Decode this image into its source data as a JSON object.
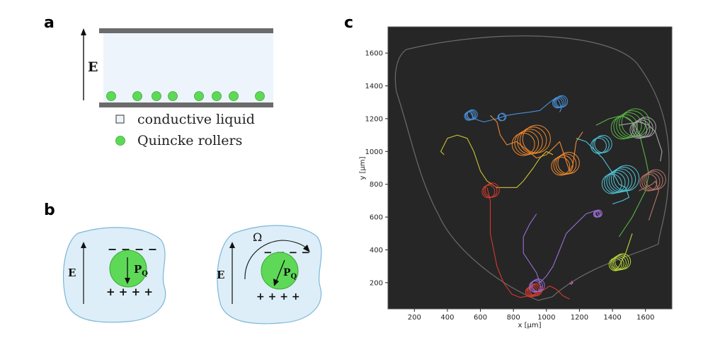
{
  "panels": {
    "a": {
      "letter": "a",
      "field_label": "E",
      "legend": [
        {
          "label": "conductive liquid",
          "marker": "square-outline"
        },
        {
          "label": "Quincke rollers",
          "marker": "green-circle"
        }
      ],
      "colors": {
        "plate": "#6b6b6b",
        "liquid": "#eef4fb",
        "roller": "#5ed957"
      }
    },
    "b": {
      "letter": "b",
      "left": {
        "field_label": "E",
        "dipole_label": "P",
        "dipole_subscript": "Q",
        "top_charges": "− − − −",
        "bottom_charges": "+ + + +"
      },
      "right": {
        "field_label": "E",
        "rotation_label": "Ω",
        "dipole_label": "P",
        "dipole_subscript": "Q",
        "top_charges": "− − − −",
        "bottom_charges": "+ + + +"
      },
      "colors": {
        "blob": "#ddeef8",
        "blob_edge": "#7bb6d9",
        "sphere": "#5ed957"
      }
    },
    "c": {
      "letter": "c",
      "colors": {
        "background": "#262626",
        "frame": "#555555"
      }
    }
  },
  "chart_data": {
    "type": "scatter",
    "title": "",
    "xlabel": "x [μm]",
    "ylabel": "y [μm]",
    "xlim": [
      40,
      1760
    ],
    "ylim": [
      40,
      1760
    ],
    "x_ticks": [
      200,
      400,
      600,
      800,
      1000,
      1200,
      1400,
      1600
    ],
    "y_ticks": [
      200,
      400,
      600,
      800,
      1000,
      1200,
      1400,
      1600
    ],
    "series": [
      {
        "color": "#4a90d9",
        "points": [
          [
            540,
            1240
          ],
          [
            560,
            1200
          ],
          [
            620,
            1180
          ],
          [
            700,
            1200
          ],
          [
            760,
            1220
          ],
          [
            820,
            1230
          ],
          [
            900,
            1240
          ],
          [
            960,
            1250
          ],
          [
            1020,
            1300
          ],
          [
            1060,
            1330
          ],
          [
            1080,
            1300
          ],
          [
            1090,
            1260
          ],
          [
            1080,
            1240
          ]
        ]
      },
      {
        "color": "#f0892e",
        "points": [
          [
            660,
            1220
          ],
          [
            700,
            1180
          ],
          [
            720,
            1100
          ],
          [
            760,
            1040
          ],
          [
            820,
            1060
          ],
          [
            880,
            1010
          ],
          [
            940,
            960
          ],
          [
            1000,
            980
          ],
          [
            1040,
            1020
          ],
          [
            1080,
            1060
          ],
          [
            1120,
            940
          ],
          [
            1140,
            880
          ],
          [
            1160,
            920
          ],
          [
            1180,
            1060
          ],
          [
            1220,
            1120
          ]
        ]
      },
      {
        "color": "#c9c234",
        "points": [
          [
            380,
            980
          ],
          [
            360,
            1000
          ],
          [
            400,
            1080
          ],
          [
            460,
            1100
          ],
          [
            520,
            1080
          ],
          [
            560,
            1000
          ],
          [
            600,
            880
          ],
          [
            640,
            820
          ],
          [
            700,
            780
          ],
          [
            760,
            780
          ],
          [
            820,
            780
          ],
          [
            860,
            820
          ],
          [
            920,
            900
          ],
          [
            960,
            960
          ],
          [
            1000,
            1000
          ],
          [
            1040,
            980
          ]
        ]
      },
      {
        "color": "#d43a2e",
        "points": [
          [
            640,
            780
          ],
          [
            660,
            700
          ],
          [
            660,
            600
          ],
          [
            660,
            500
          ],
          [
            680,
            400
          ],
          [
            700,
            300
          ],
          [
            740,
            200
          ],
          [
            790,
            130
          ],
          [
            840,
            110
          ],
          [
            900,
            120
          ],
          [
            960,
            140
          ],
          [
            1020,
            180
          ],
          [
            1060,
            160
          ],
          [
            1100,
            120
          ],
          [
            1140,
            100
          ]
        ]
      },
      {
        "color": "#9c6fd6",
        "points": [
          [
            940,
            620
          ],
          [
            900,
            560
          ],
          [
            860,
            480
          ],
          [
            860,
            380
          ],
          [
            900,
            320
          ],
          [
            940,
            260
          ],
          [
            960,
            200
          ],
          [
            1000,
            240
          ],
          [
            1040,
            300
          ],
          [
            1080,
            400
          ],
          [
            1120,
            500
          ],
          [
            1180,
            560
          ],
          [
            1240,
            620
          ],
          [
            1300,
            640
          ],
          [
            1320,
            600
          ]
        ]
      },
      {
        "color": "#4fc5d8",
        "points": [
          [
            1180,
            1080
          ],
          [
            1240,
            1060
          ],
          [
            1300,
            1000
          ],
          [
            1340,
            960
          ],
          [
            1380,
            900
          ],
          [
            1420,
            840
          ],
          [
            1440,
            800
          ],
          [
            1480,
            780
          ],
          [
            1500,
            720
          ],
          [
            1460,
            700
          ],
          [
            1400,
            680
          ]
        ]
      },
      {
        "color": "#59b447",
        "points": [
          [
            1300,
            1160
          ],
          [
            1380,
            1200
          ],
          [
            1460,
            1220
          ],
          [
            1520,
            1180
          ],
          [
            1560,
            1120
          ],
          [
            1580,
            1040
          ],
          [
            1600,
            960
          ],
          [
            1620,
            860
          ],
          [
            1600,
            760
          ],
          [
            1560,
            680
          ],
          [
            1520,
            600
          ],
          [
            1480,
            540
          ],
          [
            1440,
            480
          ]
        ]
      },
      {
        "color": "#a7a7a7",
        "points": [
          [
            1440,
            1160
          ],
          [
            1500,
            1170
          ],
          [
            1560,
            1180
          ],
          [
            1620,
            1160
          ],
          [
            1660,
            1120
          ],
          [
            1680,
            1060
          ],
          [
            1700,
            1000
          ],
          [
            1690,
            940
          ]
        ]
      },
      {
        "color": "#b8d83a",
        "points": [
          [
            1520,
            500
          ],
          [
            1500,
            440
          ],
          [
            1480,
            380
          ],
          [
            1460,
            340
          ],
          [
            1440,
            300
          ],
          [
            1420,
            280
          ],
          [
            1400,
            300
          ]
        ]
      },
      {
        "color": "#b47468",
        "points": [
          [
            1560,
            760
          ],
          [
            1600,
            780
          ],
          [
            1640,
            800
          ],
          [
            1660,
            820
          ],
          [
            1680,
            760
          ],
          [
            1660,
            700
          ],
          [
            1640,
            640
          ],
          [
            1620,
            580
          ]
        ]
      },
      {
        "color": "#e070c8",
        "points": [
          [
            1140,
            200
          ],
          [
            1150,
            190
          ],
          [
            1160,
            200
          ],
          [
            1150,
            210
          ]
        ]
      }
    ],
    "loops": [
      {
        "color": "#4a90d9",
        "center": [
          540,
          1220
        ],
        "radius": 30,
        "count": 4
      },
      {
        "color": "#4a90d9",
        "center": [
          1080,
          1300
        ],
        "radius": 35,
        "count": 4
      },
      {
        "color": "#4a90d9",
        "center": [
          730,
          1210
        ],
        "radius": 25,
        "count": 2
      },
      {
        "color": "#f0892e",
        "center": [
          900,
          1060
        ],
        "radius": 80,
        "count": 5
      },
      {
        "color": "#f0892e",
        "center": [
          1110,
          920
        ],
        "radius": 65,
        "count": 4
      },
      {
        "color": "#d43a2e",
        "center": [
          660,
          760
        ],
        "radius": 45,
        "count": 3
      },
      {
        "color": "#d43a2e",
        "center": [
          920,
          150
        ],
        "radius": 35,
        "count": 5
      },
      {
        "color": "#9c6fd6",
        "center": [
          940,
          180
        ],
        "radius": 40,
        "count": 3
      },
      {
        "color": "#9c6fd6",
        "center": [
          1310,
          620
        ],
        "radius": 22,
        "count": 3
      },
      {
        "color": "#4fc5d8",
        "center": [
          1440,
          820
        ],
        "radius": 70,
        "count": 6
      },
      {
        "color": "#4fc5d8",
        "center": [
          1330,
          1040
        ],
        "radius": 55,
        "count": 3
      },
      {
        "color": "#59b447",
        "center": [
          1500,
          1160
        ],
        "radius": 80,
        "count": 5
      },
      {
        "color": "#a7a7a7",
        "center": [
          1580,
          1140
        ],
        "radius": 60,
        "count": 4
      },
      {
        "color": "#b8d83a",
        "center": [
          1440,
          320
        ],
        "radius": 45,
        "count": 5
      },
      {
        "color": "#b47468",
        "center": [
          1640,
          820
        ],
        "radius": 60,
        "count": 4
      }
    ]
  }
}
